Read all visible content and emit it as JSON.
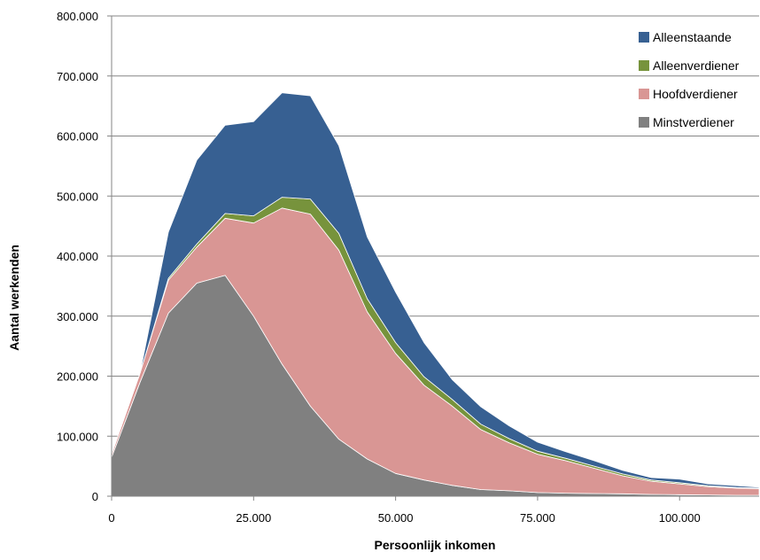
{
  "chart_data": {
    "type": "area",
    "stacked": true,
    "title": "",
    "xlabel": "Persoonlijk inkomen",
    "ylabel": "Aantal werkenden",
    "xlim": [
      0,
      114000
    ],
    "ylim": [
      0,
      800000
    ],
    "x_ticks": [
      0,
      25000,
      50000,
      75000,
      100000
    ],
    "x_tick_labels": [
      "0",
      "25.000",
      "50.000",
      "75.000",
      "100.000"
    ],
    "y_ticks": [
      0,
      100000,
      200000,
      300000,
      400000,
      500000,
      600000,
      700000,
      800000
    ],
    "y_tick_labels": [
      "0",
      "100.000",
      "200.000",
      "300.000",
      "400.000",
      "500.000",
      "600.000",
      "700.000",
      "800.000"
    ],
    "grid": "horizontal",
    "legend_position": "top-right",
    "x": [
      0,
      5000,
      10000,
      15000,
      20000,
      25000,
      30000,
      35000,
      40000,
      45000,
      50000,
      55000,
      60000,
      65000,
      70000,
      75000,
      80000,
      85000,
      90000,
      95000,
      100000,
      105000,
      110000,
      114000
    ],
    "series": [
      {
        "name": "Minstverdiener",
        "color": "#808080",
        "values": [
          65000,
          190000,
          305000,
          355000,
          368000,
          300000,
          220000,
          150000,
          95000,
          62000,
          38000,
          27000,
          18000,
          11000,
          9000,
          6000,
          5000,
          4500,
          4000,
          3000,
          2500,
          2000,
          1500,
          1500
        ]
      },
      {
        "name": "Hoofdverdiener",
        "color": "#d99694",
        "values": [
          5000,
          15000,
          55000,
          60000,
          95000,
          155000,
          260000,
          320000,
          315000,
          245000,
          200000,
          158000,
          132000,
          100000,
          80000,
          64000,
          54000,
          42000,
          30000,
          22000,
          18000,
          14000,
          12000,
          11000
        ]
      },
      {
        "name": "Alleenverdiener",
        "color": "#77933c",
        "values": [
          0,
          0,
          3000,
          5000,
          8000,
          12000,
          18000,
          25000,
          28000,
          22000,
          18000,
          14000,
          11000,
          9000,
          7000,
          5000,
          4000,
          3500,
          3000,
          2000,
          2000,
          1500,
          1000,
          1000
        ]
      },
      {
        "name": "Alleenstaande",
        "color": "#376092",
        "values": [
          0,
          0,
          77000,
          140000,
          147000,
          157000,
          174000,
          172000,
          146000,
          103000,
          84000,
          57000,
          33000,
          29000,
          21000,
          15000,
          11000,
          9000,
          6000,
          4000,
          6000,
          3000,
          3000,
          1500
        ]
      }
    ],
    "legend_order": [
      "Alleenstaande",
      "Alleenverdiener",
      "Hoofdverdiener",
      "Minstverdiener"
    ]
  }
}
